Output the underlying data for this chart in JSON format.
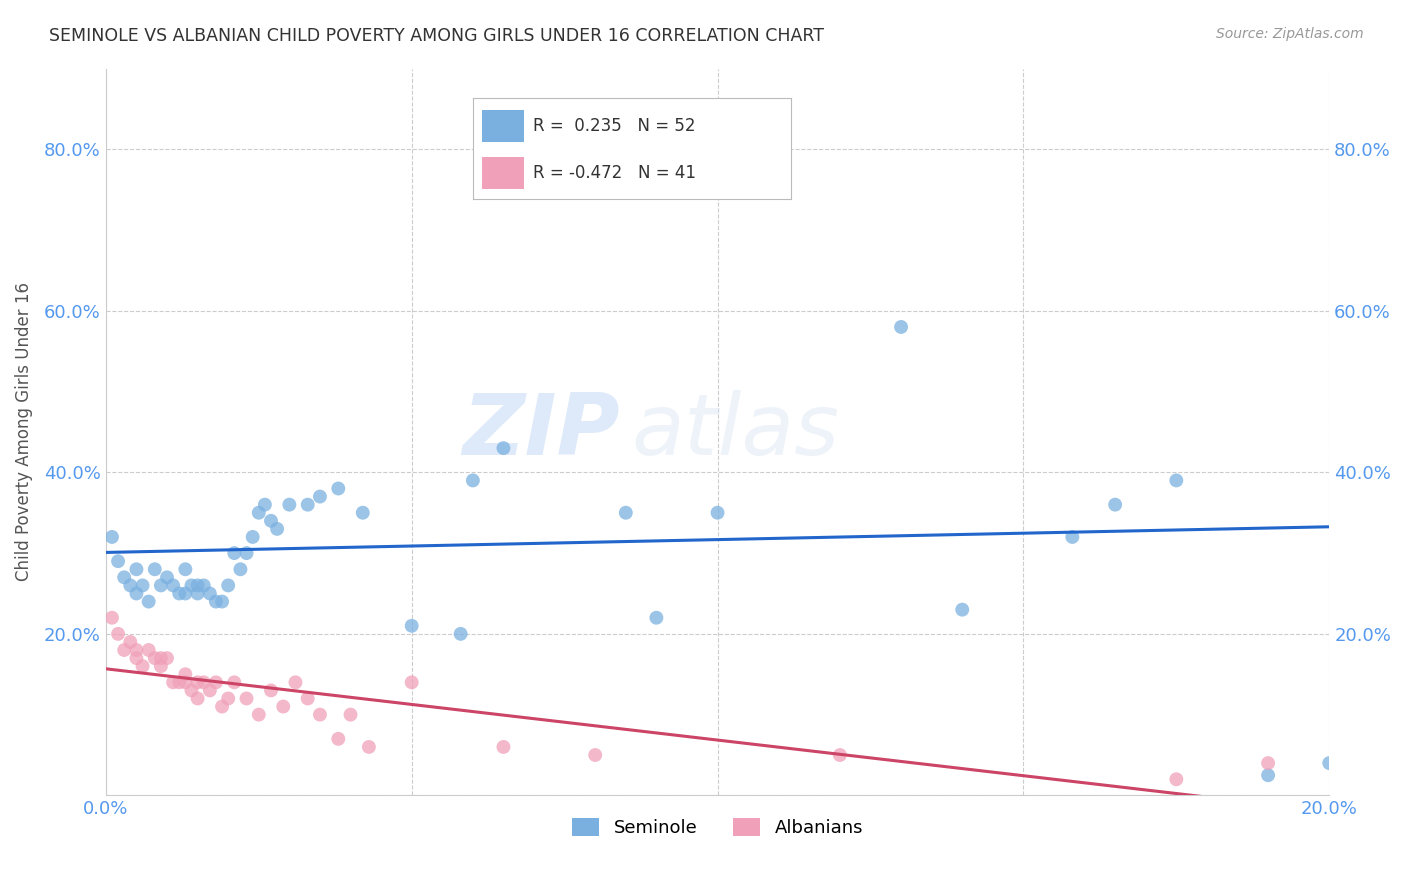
{
  "title": "SEMINOLE VS ALBANIAN CHILD POVERTY AMONG GIRLS UNDER 16 CORRELATION CHART",
  "source": "Source: ZipAtlas.com",
  "ylabel": "Child Poverty Among Girls Under 16",
  "xlim": [
    0.0,
    0.2
  ],
  "ylim": [
    0.0,
    0.9
  ],
  "yticks": [
    0.0,
    0.2,
    0.4,
    0.6,
    0.8
  ],
  "xticks": [
    0.0,
    0.05,
    0.1,
    0.15,
    0.2
  ],
  "xtick_labels": [
    "0.0%",
    "",
    "",
    "",
    "20.0%"
  ],
  "ytick_labels": [
    "",
    "20.0%",
    "40.0%",
    "60.0%",
    "80.0%"
  ],
  "seminole_R": 0.235,
  "seminole_N": 52,
  "albanian_R": -0.472,
  "albanian_N": 41,
  "seminole_color": "#7ab0e0",
  "albanian_color": "#f0a0b8",
  "seminole_line_color": "#2266cc",
  "albanian_line_color": "#cc4466",
  "background_color": "#ffffff",
  "watermark_zip": "ZIP",
  "watermark_atlas": "atlas",
  "seminole_x": [
    0.001,
    0.002,
    0.003,
    0.004,
    0.005,
    0.005,
    0.006,
    0.007,
    0.008,
    0.009,
    0.01,
    0.011,
    0.012,
    0.013,
    0.013,
    0.014,
    0.015,
    0.015,
    0.016,
    0.017,
    0.018,
    0.019,
    0.02,
    0.021,
    0.022,
    0.023,
    0.024,
    0.025,
    0.026,
    0.027,
    0.028,
    0.03,
    0.033,
    0.035,
    0.038,
    0.042,
    0.05,
    0.058,
    0.06,
    0.065,
    0.072,
    0.085,
    0.09,
    0.1,
    0.11,
    0.13,
    0.14,
    0.158,
    0.165,
    0.175,
    0.19,
    0.2
  ],
  "seminole_y": [
    0.32,
    0.29,
    0.27,
    0.26,
    0.28,
    0.25,
    0.26,
    0.24,
    0.28,
    0.26,
    0.27,
    0.26,
    0.25,
    0.28,
    0.25,
    0.26,
    0.26,
    0.25,
    0.26,
    0.25,
    0.24,
    0.24,
    0.26,
    0.3,
    0.28,
    0.3,
    0.32,
    0.35,
    0.36,
    0.34,
    0.33,
    0.36,
    0.36,
    0.37,
    0.38,
    0.35,
    0.21,
    0.2,
    0.39,
    0.43,
    0.75,
    0.35,
    0.22,
    0.35,
    0.75,
    0.58,
    0.23,
    0.32,
    0.36,
    0.39,
    0.025,
    0.04
  ],
  "albanian_x": [
    0.001,
    0.002,
    0.003,
    0.004,
    0.005,
    0.005,
    0.006,
    0.007,
    0.008,
    0.009,
    0.009,
    0.01,
    0.011,
    0.012,
    0.013,
    0.013,
    0.014,
    0.015,
    0.015,
    0.016,
    0.017,
    0.018,
    0.019,
    0.02,
    0.021,
    0.023,
    0.025,
    0.027,
    0.029,
    0.031,
    0.033,
    0.035,
    0.038,
    0.04,
    0.043,
    0.05,
    0.065,
    0.08,
    0.12,
    0.175,
    0.19
  ],
  "albanian_y": [
    0.22,
    0.2,
    0.18,
    0.19,
    0.18,
    0.17,
    0.16,
    0.18,
    0.17,
    0.17,
    0.16,
    0.17,
    0.14,
    0.14,
    0.14,
    0.15,
    0.13,
    0.14,
    0.12,
    0.14,
    0.13,
    0.14,
    0.11,
    0.12,
    0.14,
    0.12,
    0.1,
    0.13,
    0.11,
    0.14,
    0.12,
    0.1,
    0.07,
    0.1,
    0.06,
    0.14,
    0.06,
    0.05,
    0.05,
    0.02,
    0.04
  ]
}
